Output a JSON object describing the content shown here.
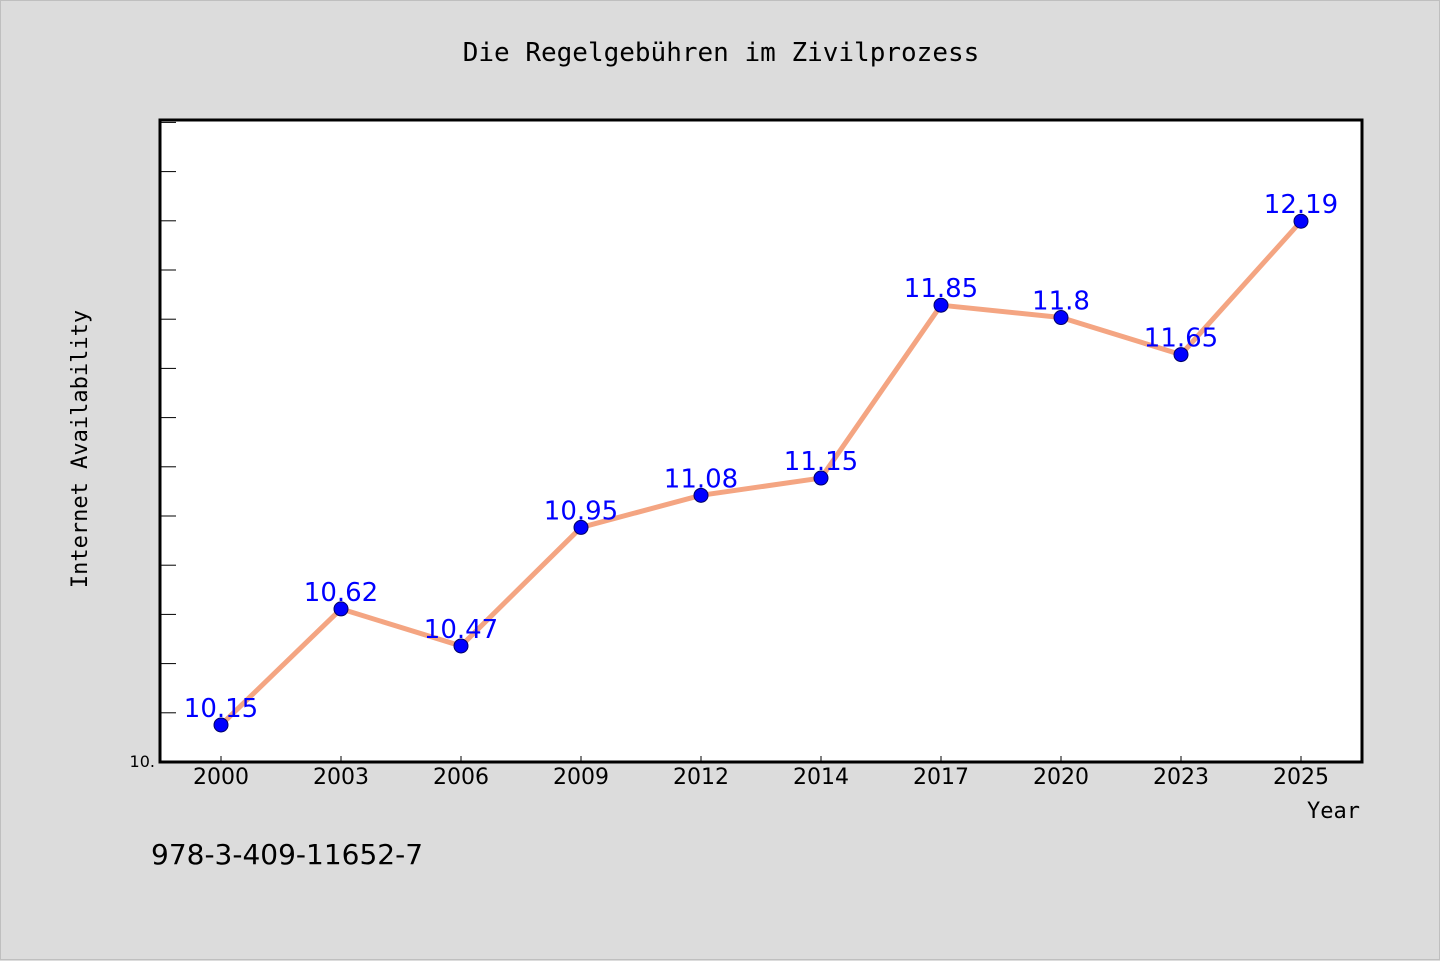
{
  "chart_data": {
    "type": "line",
    "title": "Die Regelgebühren im Zivilprozess",
    "xlabel": "Year",
    "ylabel": "Internet Availability",
    "categories": [
      "2000",
      "2003",
      "2006",
      "2009",
      "2012",
      "2014",
      "2017",
      "2020",
      "2023",
      "2025"
    ],
    "values": [
      10.15,
      10.62,
      10.47,
      10.95,
      11.08,
      11.15,
      11.85,
      11.8,
      11.65,
      12.19
    ],
    "data_labels": [
      "10.15",
      "10.62",
      "10.47",
      "10.95",
      "11.08",
      "11.15",
      "11.85",
      "11.8",
      "11.65",
      "12.19"
    ],
    "y_tick_label": "10.",
    "ylim": [
      10.0,
      12.6
    ],
    "grid": false,
    "colors": {
      "line": "#f4a582",
      "marker": "#0000ff",
      "data_label": "#0000ff",
      "plot_background": "#ffffff",
      "figure_background": "#dcdcdc"
    }
  },
  "footer": {
    "isbn": "978-3-409-11652-7"
  }
}
